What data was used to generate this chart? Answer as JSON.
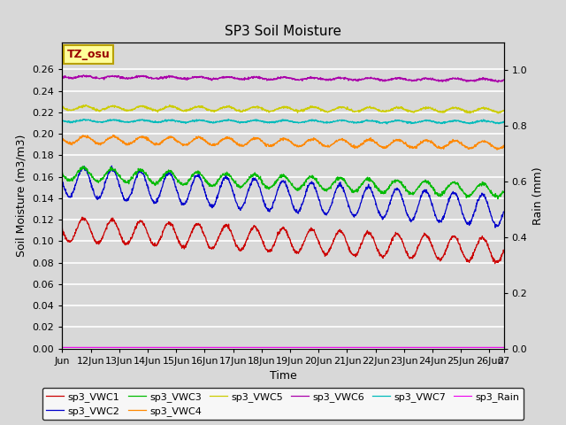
{
  "title": "SP3 Soil Moisture",
  "xlabel": "Time",
  "ylabel_left": "Soil Moisture (m3/m3)",
  "ylabel_right": "Rain (mm)",
  "xlim_start": 0,
  "xlim_end": 15.5,
  "ylim_left": [
    0.0,
    0.285
  ],
  "ylim_right": [
    0.0,
    1.1
  ],
  "xtick_labels": [
    "Jun",
    "12Jun",
    "13Jun",
    "14Jun",
    "15Jun",
    "16Jun",
    "17Jun",
    "18Jun",
    "19Jun",
    "20Jun",
    "21Jun",
    "22Jun",
    "23Jun",
    "24Jun",
    "25Jun",
    "26Jun",
    "27"
  ],
  "xtick_positions": [
    0,
    1,
    2,
    3,
    4,
    5,
    6,
    7,
    8,
    9,
    10,
    11,
    12,
    13,
    14,
    15,
    15.5
  ],
  "ytick_left": [
    0.0,
    0.02,
    0.04,
    0.06,
    0.08,
    0.1,
    0.12,
    0.14,
    0.16,
    0.18,
    0.2,
    0.22,
    0.24,
    0.26
  ],
  "background_color": "#d8d8d8",
  "plot_bg_color": "#d8d8d8",
  "grid_color": "#ffffff",
  "annotation_text": "TZ_osu",
  "annotation_bg": "#ffff99",
  "annotation_border": "#b8a000",
  "vwc1_color": "#cc0000",
  "vwc2_color": "#0000cc",
  "vwc3_color": "#00bb00",
  "vwc4_color": "#ff8800",
  "vwc5_color": "#cccc00",
  "vwc6_color": "#aa00aa",
  "vwc7_color": "#00bbbb",
  "rain_color": "#ee00ee",
  "legend_labels": [
    "sp3_VWC1",
    "sp3_VWC2",
    "sp3_VWC3",
    "sp3_VWC4",
    "sp3_VWC5",
    "sp3_VWC6",
    "sp3_VWC7",
    "sp3_Rain"
  ],
  "title_fontsize": 11,
  "axis_label_fontsize": 9,
  "tick_fontsize": 8,
  "legend_fontsize": 8
}
